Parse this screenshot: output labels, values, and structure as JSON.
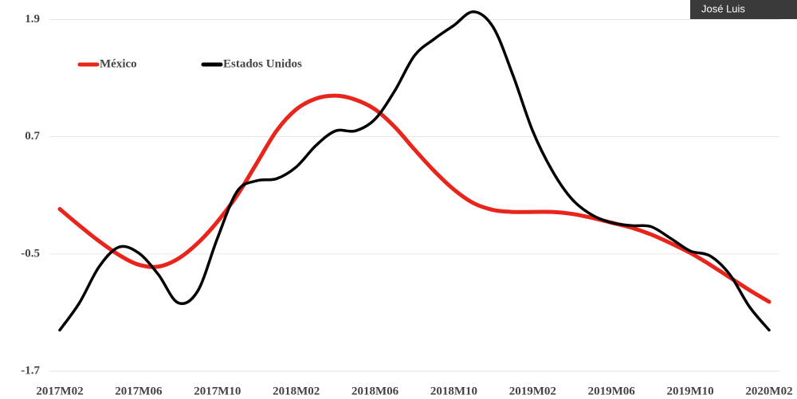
{
  "overlay_label": "José Luis",
  "chart_data": {
    "type": "line",
    "categories": [
      "2017M02",
      null,
      null,
      null,
      "2017M06",
      null,
      null,
      null,
      "2017M10",
      null,
      null,
      null,
      "2018M02",
      null,
      null,
      null,
      "2018M06",
      null,
      null,
      null,
      "2018M10",
      null,
      null,
      null,
      "2019M02",
      null,
      null,
      null,
      "2019M06",
      null,
      null,
      null,
      "2019M10",
      null,
      null,
      null,
      "2020M02"
    ],
    "series": [
      {
        "name": "México",
        "color": "#e8241b",
        "values": [
          -0.04,
          -0.21,
          -0.37,
          -0.51,
          -0.61,
          -0.63,
          -0.55,
          -0.39,
          -0.17,
          0.1,
          0.43,
          0.76,
          0.98,
          1.09,
          1.12,
          1.08,
          0.98,
          0.8,
          0.57,
          0.35,
          0.16,
          0.02,
          -0.05,
          -0.07,
          -0.07,
          -0.07,
          -0.09,
          -0.13,
          -0.18,
          -0.23,
          -0.3,
          -0.39,
          -0.49,
          -0.61,
          -0.74,
          -0.87,
          -0.99
        ]
      },
      {
        "name": "Estados Unidos",
        "color": "#000000",
        "values": [
          -1.28,
          -1.0,
          -0.63,
          -0.43,
          -0.49,
          -0.71,
          -1.0,
          -0.88,
          -0.34,
          0.14,
          0.25,
          0.27,
          0.39,
          0.61,
          0.76,
          0.76,
          0.88,
          1.17,
          1.53,
          1.7,
          1.84,
          1.98,
          1.82,
          1.33,
          0.76,
          0.35,
          0.06,
          -0.1,
          -0.18,
          -0.21,
          -0.22,
          -0.34,
          -0.47,
          -0.52,
          -0.71,
          -1.04,
          -1.28
        ]
      }
    ],
    "ylim": [
      -1.7,
      2.1
    ],
    "yticks": [
      -1.7,
      -0.5,
      0.7,
      1.9
    ],
    "grid": true,
    "legend": "top-left"
  }
}
